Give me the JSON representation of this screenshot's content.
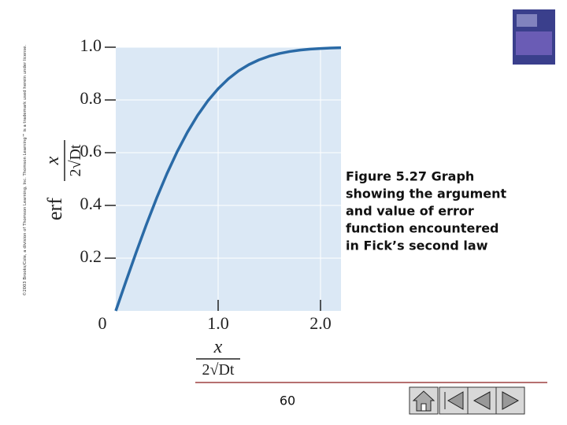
{
  "chart_data": {
    "type": "line",
    "x": [
      0,
      0.1,
      0.2,
      0.3,
      0.4,
      0.5,
      0.6,
      0.7,
      0.8,
      0.9,
      1.0,
      1.1,
      1.2,
      1.3,
      1.4,
      1.5,
      1.6,
      1.7,
      1.8,
      1.9,
      2.0,
      2.1,
      2.2
    ],
    "values": [
      0,
      0.1125,
      0.2227,
      0.3286,
      0.4284,
      0.5205,
      0.6039,
      0.6778,
      0.7421,
      0.7969,
      0.8427,
      0.8802,
      0.9103,
      0.934,
      0.9523,
      0.9661,
      0.9763,
      0.9838,
      0.9891,
      0.9928,
      0.9953,
      0.997,
      0.9981
    ],
    "color": "#2a6aa6",
    "xlim": [
      0,
      2.2
    ],
    "ylim": [
      0,
      1
    ],
    "xticks": [
      0,
      {
        "value": 1,
        "label": "1.0"
      },
      {
        "value": 2,
        "label": "2.0"
      }
    ],
    "yticks": [
      0.2,
      0.4,
      0.6,
      0.8,
      {
        "value": 1,
        "label": "1.0"
      }
    ],
    "grid": true,
    "ylabel": {
      "function": "erf",
      "numerator": "x",
      "denominator": "2√Dt"
    },
    "xlabel": {
      "numerator": "x",
      "denominator": "2√Dt"
    }
  },
  "caption": [
    "Figure 5.27  Graph",
    "showing the argument",
    "and value of error",
    "function encountered",
    "in Fick’s second law"
  ],
  "copyright": "©2003 Brooks/Cole, a division of Thomson Learning, Inc.  Thomson Learning™ is a trademark used herein under license.",
  "page_number": "60"
}
